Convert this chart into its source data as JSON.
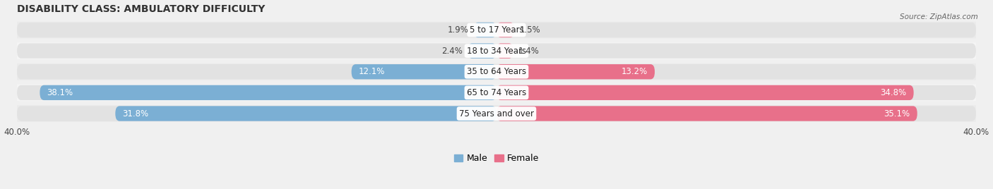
{
  "title": "DISABILITY CLASS: AMBULATORY DIFFICULTY",
  "source": "Source: ZipAtlas.com",
  "categories": [
    "5 to 17 Years",
    "18 to 34 Years",
    "35 to 64 Years",
    "65 to 74 Years",
    "75 Years and over"
  ],
  "male_values": [
    1.9,
    2.4,
    12.1,
    38.1,
    31.8
  ],
  "female_values": [
    1.5,
    1.4,
    13.2,
    34.8,
    35.1
  ],
  "xlim": 40.0,
  "male_color": "#7bafd4",
  "female_color": "#e8708a",
  "bar_bg_color": "#e2e2e2",
  "row_bg_even": "#ebebeb",
  "row_bg_odd": "#f5f5f5",
  "title_fontsize": 10,
  "label_fontsize": 8.5,
  "value_fontsize": 8.5,
  "axis_label_fontsize": 8.5,
  "legend_fontsize": 9,
  "figure_bg": "#f0f0f0"
}
